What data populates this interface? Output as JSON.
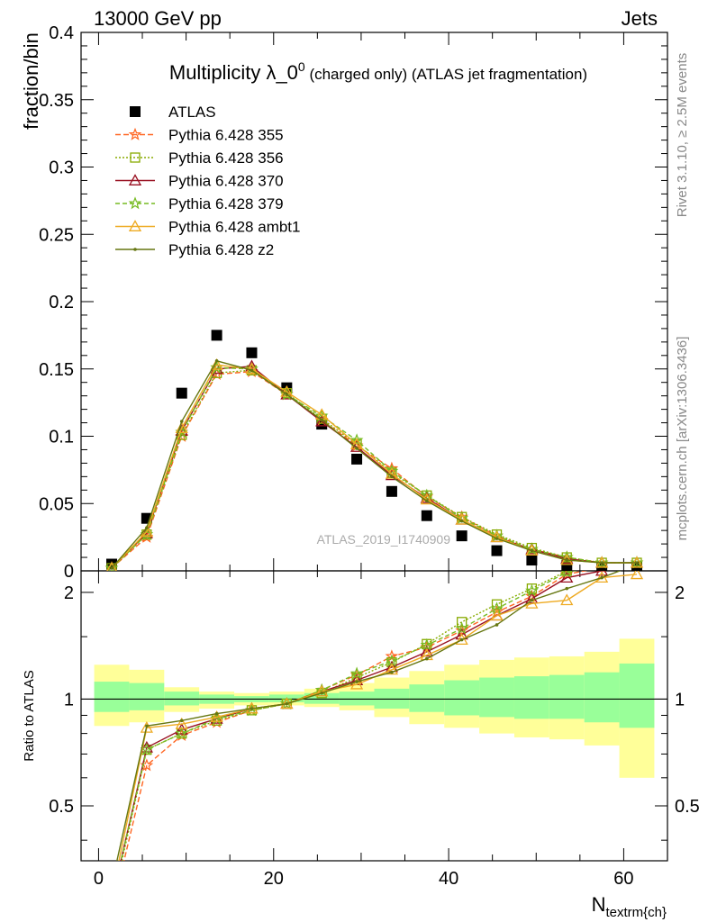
{
  "header": {
    "left": "13000 GeV pp",
    "right": "Jets"
  },
  "title": {
    "main": "Multiplicity λ_0",
    "sup": "0",
    "sub": " (charged only) (ATLAS jet fragmentation)"
  },
  "side_labels": {
    "rivet": "Rivet 3.1.10, ≥ 2.5M events",
    "mcplots": "mcplots.cern.ch [arXiv:1306.3436]"
  },
  "watermark": "ATLAS_2019_I1740909",
  "colors": {
    "data": "#000000",
    "band_inner": "#99ff99",
    "band_outer": "#ffff99"
  },
  "chart_data": [
    {
      "type": "scatter",
      "panel": "main",
      "ylabel": "fraction/bin",
      "xlim": [
        -2,
        65
      ],
      "ylim": [
        0,
        0.4
      ],
      "xticks": [
        0,
        20,
        40,
        60
      ],
      "yticks": [
        0,
        0.05,
        0.1,
        0.15,
        0.2,
        0.25,
        0.3,
        0.35,
        0.4
      ],
      "ytick_labels": [
        "0",
        "0.05",
        "0.1",
        "0.15",
        "0.2",
        "0.25",
        "0.3",
        "0.35",
        "0.4"
      ],
      "x": [
        1.5,
        5.5,
        9.5,
        13.5,
        17.5,
        21.5,
        25.5,
        29.5,
        33.5,
        37.5,
        41.5,
        45.5,
        49.5,
        53.5,
        57.5,
        61.5
      ],
      "series": [
        {
          "name": "ATLAS",
          "key": "atlas",
          "color": "#000000",
          "marker": "square",
          "dash": "none",
          "values": [
            0.005,
            0.039,
            0.132,
            0.175,
            0.162,
            0.136,
            0.109,
            0.083,
            0.059,
            0.041,
            0.026,
            0.015,
            0.008,
            0.004,
            0.003,
            0.003
          ]
        },
        {
          "name": "Pythia 6.428 355",
          "key": "p355",
          "color": "#ff6622",
          "marker": "star",
          "dash": "6,3",
          "values": [
            0.002,
            0.025,
            0.1,
            0.146,
            0.148,
            0.131,
            0.112,
            0.093,
            0.076,
            0.055,
            0.04,
            0.026,
            0.016,
            0.01,
            0.006,
            0.006
          ]
        },
        {
          "name": "Pythia 6.428 356",
          "key": "p356",
          "color": "#88aa00",
          "marker": "square-open",
          "dash": "2,2",
          "values": [
            0.002,
            0.027,
            0.101,
            0.147,
            0.149,
            0.132,
            0.113,
            0.094,
            0.073,
            0.056,
            0.04,
            0.027,
            0.017,
            0.01,
            0.006,
            0.006
          ]
        },
        {
          "name": "Pythia 6.428 370",
          "key": "p370",
          "color": "#991122",
          "marker": "triangle-open",
          "dash": "none",
          "values": [
            0.002,
            0.028,
            0.104,
            0.15,
            0.152,
            0.131,
            0.111,
            0.092,
            0.071,
            0.054,
            0.038,
            0.025,
            0.016,
            0.009,
            0.006,
            0.006
          ]
        },
        {
          "name": "Pythia 6.428 379",
          "key": "p379",
          "color": "#77bb22",
          "marker": "star",
          "dash": "5,3",
          "values": [
            0.002,
            0.027,
            0.103,
            0.151,
            0.15,
            0.131,
            0.115,
            0.097,
            0.074,
            0.056,
            0.039,
            0.026,
            0.016,
            0.01,
            0.006,
            0.006
          ]
        },
        {
          "name": "Pythia 6.428 ambt1",
          "key": "ambt1",
          "color": "#eeaa22",
          "marker": "triangle-open",
          "dash": "none",
          "values": [
            0.002,
            0.029,
            0.106,
            0.153,
            0.15,
            0.133,
            0.116,
            0.094,
            0.072,
            0.053,
            0.038,
            0.025,
            0.015,
            0.008,
            0.006,
            0.006
          ]
        },
        {
          "name": "Pythia 6.428 z2",
          "key": "z2",
          "color": "#667711",
          "marker": "dot",
          "dash": "none",
          "values": [
            0.002,
            0.032,
            0.111,
            0.156,
            0.149,
            0.131,
            0.112,
            0.091,
            0.07,
            0.052,
            0.037,
            0.024,
            0.015,
            0.008,
            0.006,
            0.006
          ]
        }
      ]
    },
    {
      "type": "line",
      "panel": "ratio",
      "ylabel": "Ratio to ATLAS",
      "xlabel_main": "N",
      "xlabel_sub": "textrm{ch}",
      "ylim": [
        0.35,
        2.3
      ],
      "ylog": true,
      "yticks": [
        0.5,
        1,
        2
      ],
      "ytick_labels": [
        "0.5",
        "1",
        "2"
      ],
      "xticks": [
        0,
        20,
        40,
        60
      ],
      "xtick_labels": [
        "0",
        "20",
        "40",
        "60"
      ],
      "bins": [
        [
          -0.5,
          3.5
        ],
        [
          3.5,
          7.5
        ],
        [
          7.5,
          11.5
        ],
        [
          11.5,
          15.5
        ],
        [
          15.5,
          19.5
        ],
        [
          19.5,
          23.5
        ],
        [
          23.5,
          27.5
        ],
        [
          27.5,
          31.5
        ],
        [
          31.5,
          35.5
        ],
        [
          35.5,
          39.5
        ],
        [
          39.5,
          43.5
        ],
        [
          43.5,
          47.5
        ],
        [
          47.5,
          51.5
        ],
        [
          51.5,
          55.5
        ],
        [
          55.5,
          59.5
        ],
        [
          59.5,
          63.5
        ]
      ],
      "band_inner": [
        [
          0.92,
          1.12
        ],
        [
          0.93,
          1.11
        ],
        [
          0.96,
          1.05
        ],
        [
          0.97,
          1.03
        ],
        [
          0.98,
          1.02
        ],
        [
          0.98,
          1.03
        ],
        [
          0.97,
          1.04
        ],
        [
          0.96,
          1.05
        ],
        [
          0.94,
          1.07
        ],
        [
          0.92,
          1.1
        ],
        [
          0.9,
          1.13
        ],
        [
          0.89,
          1.15
        ],
        [
          0.88,
          1.16
        ],
        [
          0.88,
          1.17
        ],
        [
          0.86,
          1.19
        ],
        [
          0.83,
          1.26
        ]
      ],
      "band_outer": [
        [
          0.84,
          1.25
        ],
        [
          0.86,
          1.21
        ],
        [
          0.92,
          1.08
        ],
        [
          0.94,
          1.05
        ],
        [
          0.96,
          1.04
        ],
        [
          0.96,
          1.05
        ],
        [
          0.95,
          1.07
        ],
        [
          0.93,
          1.11
        ],
        [
          0.89,
          1.15
        ],
        [
          0.85,
          1.2
        ],
        [
          0.83,
          1.25
        ],
        [
          0.8,
          1.29
        ],
        [
          0.78,
          1.31
        ],
        [
          0.77,
          1.32
        ],
        [
          0.74,
          1.36
        ],
        [
          0.6,
          1.48
        ]
      ],
      "series": [
        {
          "key": "p355",
          "values": [
            0.25,
            0.65,
            0.79,
            0.86,
            0.93,
            0.97,
            1.06,
            1.17,
            1.32,
            1.4,
            1.56,
            1.76,
            1.95,
            2.25,
            2.35,
            2.4
          ]
        },
        {
          "key": "p356",
          "values": [
            0.26,
            0.72,
            0.8,
            0.87,
            0.93,
            0.97,
            1.04,
            1.15,
            1.27,
            1.43,
            1.65,
            1.85,
            2.05,
            2.3,
            2.4,
            2.4
          ]
        },
        {
          "key": "p370",
          "values": [
            0.27,
            0.73,
            0.82,
            0.88,
            0.94,
            0.97,
            1.05,
            1.13,
            1.23,
            1.36,
            1.52,
            1.72,
            1.92,
            2.2,
            2.3,
            2.4
          ]
        },
        {
          "key": "p379",
          "values": [
            0.27,
            0.72,
            0.8,
            0.88,
            0.93,
            0.97,
            1.06,
            1.18,
            1.28,
            1.42,
            1.58,
            1.8,
            2.02,
            2.28,
            2.38,
            2.4
          ]
        },
        {
          "key": "ambt1",
          "values": [
            0.28,
            0.83,
            0.85,
            0.89,
            0.94,
            0.97,
            1.05,
            1.1,
            1.21,
            1.33,
            1.47,
            1.72,
            1.86,
            1.9,
            2.2,
            2.25
          ]
        },
        {
          "key": "z2",
          "values": [
            0.3,
            0.84,
            0.87,
            0.91,
            0.94,
            0.97,
            1.04,
            1.12,
            1.19,
            1.3,
            1.47,
            1.62,
            1.9,
            2.05,
            2.2,
            2.4
          ]
        }
      ]
    }
  ]
}
